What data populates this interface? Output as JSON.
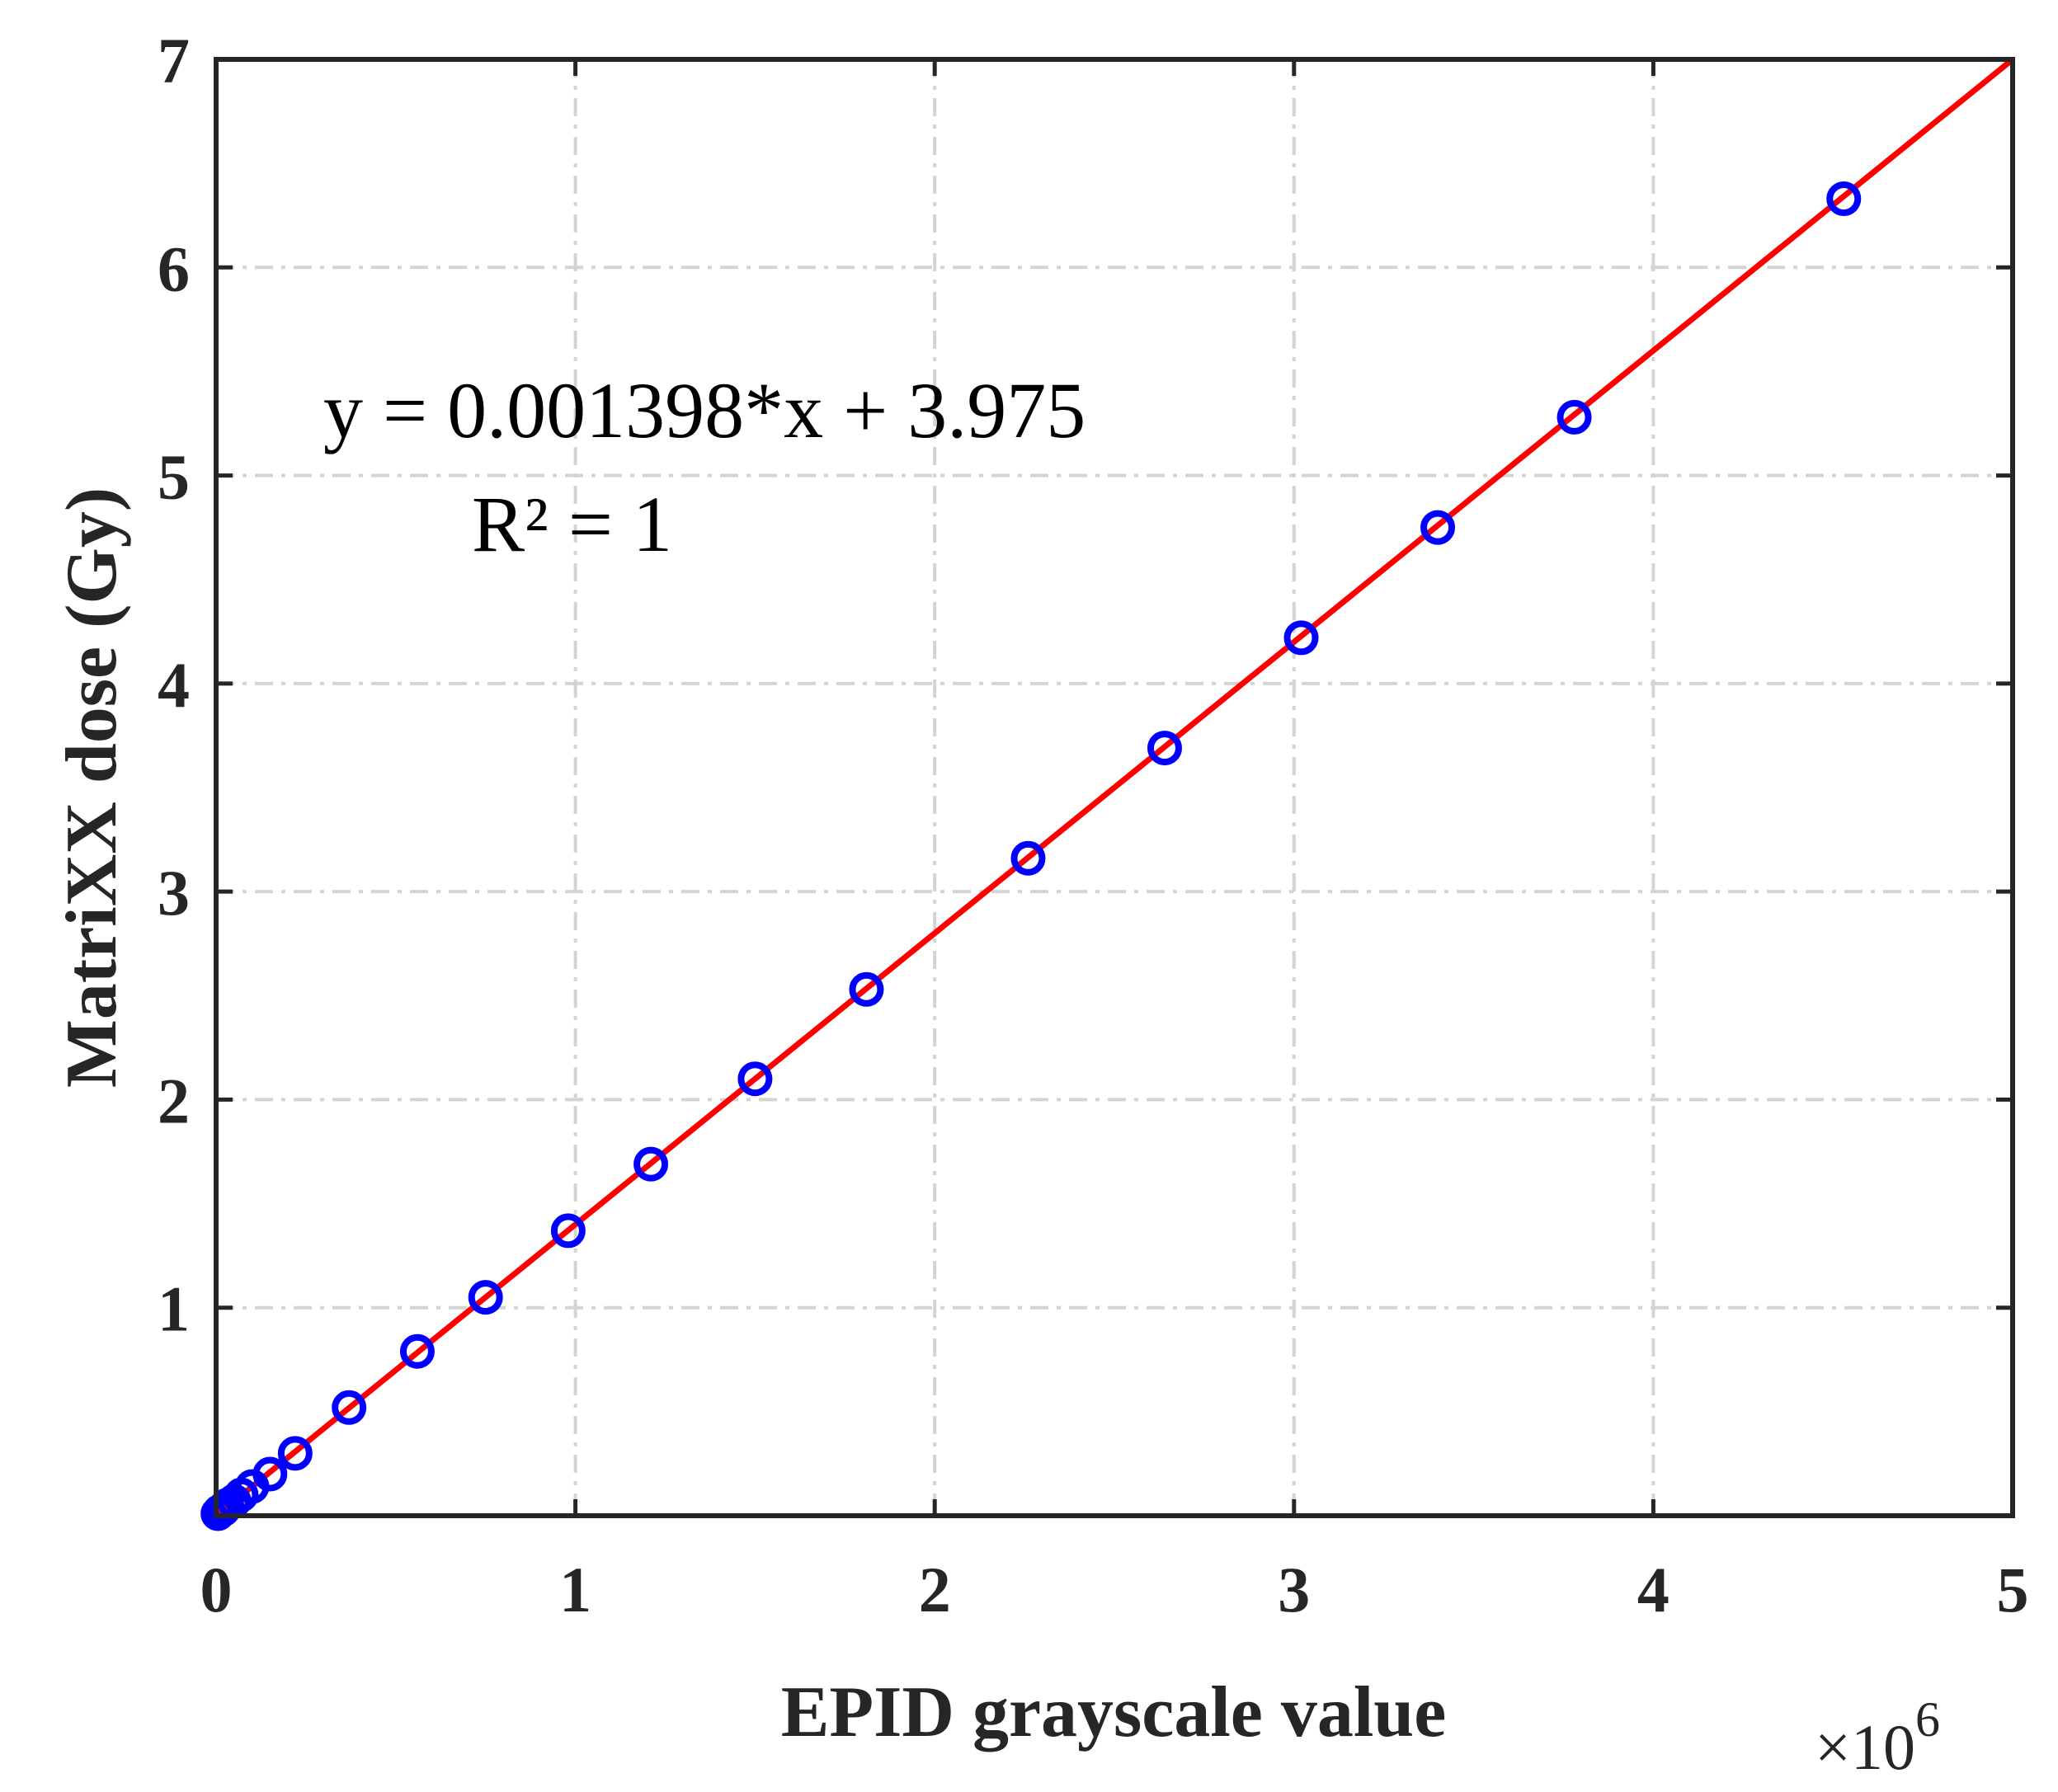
{
  "chart_data": {
    "type": "scatter",
    "xlabel": "EPID grayscale value",
    "ylabel": "MatriXX dose (Gy)",
    "x_multiplier_label": "×10",
    "x_multiplier_exponent": "6",
    "xlim": [
      0,
      5
    ],
    "ylim": [
      0.0,
      7
    ],
    "x_ticks": [
      "0",
      "1",
      "2",
      "3",
      "4",
      "5"
    ],
    "y_ticks": [
      "1",
      "2",
      "3",
      "4",
      "5",
      "6",
      "7"
    ],
    "grid": true,
    "annotations": {
      "equation": "y = 0.001398*x + 3.975",
      "r_squared": "R² = 1"
    },
    "series": [
      {
        "marker": "circle",
        "color": "#0000ff",
        "points": [
          [
            0.005,
            0.01
          ],
          [
            0.01,
            0.02
          ],
          [
            0.02,
            0.03
          ],
          [
            0.03,
            0.05
          ],
          [
            0.05,
            0.07
          ],
          [
            0.07,
            0.1
          ],
          [
            0.1,
            0.14
          ],
          [
            0.15,
            0.2
          ],
          [
            0.22,
            0.3
          ],
          [
            0.37,
            0.52
          ],
          [
            0.56,
            0.79
          ],
          [
            0.75,
            1.05
          ],
          [
            0.98,
            1.37
          ],
          [
            1.21,
            1.69
          ],
          [
            1.5,
            2.1
          ],
          [
            1.81,
            2.53
          ],
          [
            2.26,
            3.16
          ],
          [
            2.64,
            3.69
          ],
          [
            3.02,
            4.22
          ],
          [
            3.4,
            4.75
          ],
          [
            3.78,
            5.28
          ],
          [
            4.53,
            6.33
          ]
        ]
      },
      {
        "line": "fit",
        "color": "#ff0000",
        "x": [
          0,
          5
        ],
        "y": [
          0.0,
          7
        ]
      }
    ]
  }
}
